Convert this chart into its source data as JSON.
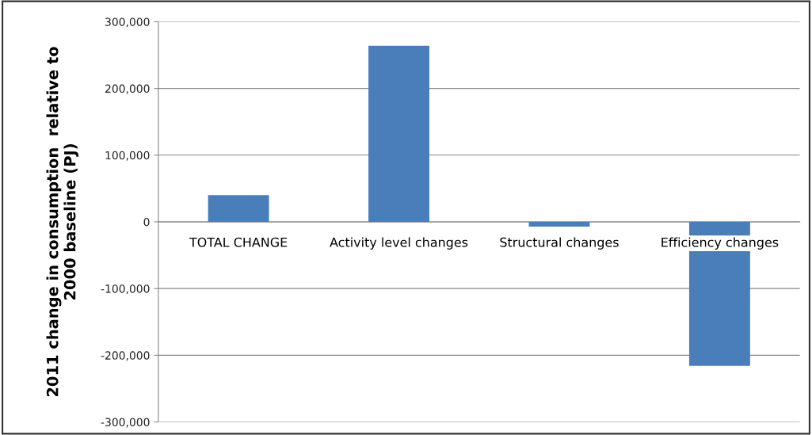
{
  "chart_data": {
    "type": "bar",
    "ylabel": "2011 change in consumption  relative to\n2000 baseline (PJ)",
    "categories": [
      "TOTAL CHANGE",
      "Activity level changes",
      "Structural changes",
      "Efficiency changes"
    ],
    "values": [
      40000,
      264000,
      -7000,
      -216000
    ],
    "color": "#4a7ebb",
    "ylim": [
      -300000,
      300000
    ],
    "yticks": [
      {
        "value": -300000,
        "label": "-300,000"
      },
      {
        "value": -200000,
        "label": "-200,000"
      },
      {
        "value": -100000,
        "label": "-100,000"
      },
      0,
      {
        "value": 100000,
        "label": "100,000"
      },
      {
        "value": 200000,
        "label": "200,000"
      },
      {
        "value": 300000,
        "label": "300,000"
      }
    ],
    "grid": "y",
    "legend": false
  }
}
